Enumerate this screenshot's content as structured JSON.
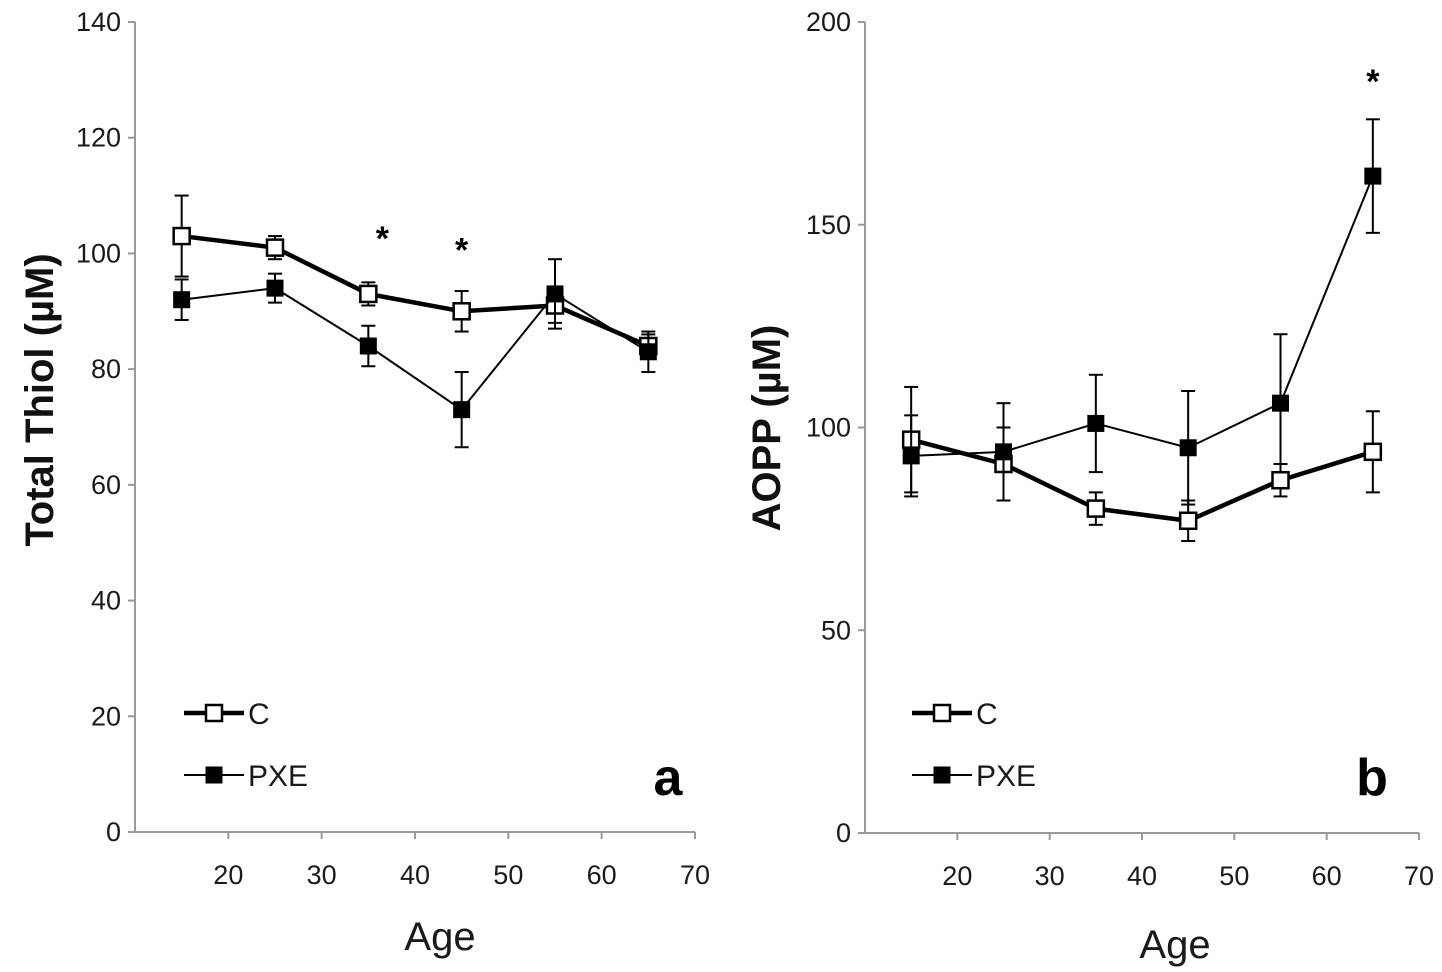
{
  "chart_data": [
    {
      "type": "line",
      "panel_label": "a",
      "title": "",
      "xlabel": "Age",
      "ylabel": "Total Thiol (µM)",
      "xlim": [
        10,
        70
      ],
      "ylim": [
        0,
        140
      ],
      "xticks": [
        20,
        30,
        40,
        50,
        60,
        70
      ],
      "yticks": [
        0,
        20,
        40,
        60,
        80,
        100,
        120,
        140
      ],
      "grid": false,
      "legend_position": "bottom-left",
      "series": [
        {
          "name": "C",
          "marker": "open-square",
          "line_weight": "thick",
          "color": "#000000",
          "points": [
            {
              "x": 15,
              "y": 103,
              "err": 7
            },
            {
              "x": 25,
              "y": 101,
              "err": 2
            },
            {
              "x": 35,
              "y": 93,
              "err": 2
            },
            {
              "x": 45,
              "y": 90,
              "err": 3.5
            },
            {
              "x": 55,
              "y": 91,
              "err": 3
            },
            {
              "x": 65,
              "y": 84,
              "err": 2
            }
          ]
        },
        {
          "name": "PXE",
          "marker": "filled-square",
          "line_weight": "thin",
          "color": "#000000",
          "points": [
            {
              "x": 15,
              "y": 92,
              "err": 3.5
            },
            {
              "x": 25,
              "y": 94,
              "err": 2.5
            },
            {
              "x": 35,
              "y": 84,
              "err": 3.5
            },
            {
              "x": 45,
              "y": 73,
              "err": 6.5
            },
            {
              "x": 55,
              "y": 93,
              "err": 6
            },
            {
              "x": 65,
              "y": 83,
              "err": 3.5
            }
          ]
        }
      ],
      "annotations": [
        {
          "text": "*",
          "x": 36.5,
          "y": 103
        },
        {
          "text": "*",
          "x": 45,
          "y": 101
        }
      ]
    },
    {
      "type": "line",
      "panel_label": "b",
      "title": "",
      "xlabel": "Age",
      "ylabel": "AOPP (µM)",
      "xlim": [
        10,
        70
      ],
      "ylim": [
        0,
        200
      ],
      "xticks": [
        20,
        30,
        40,
        50,
        60,
        70
      ],
      "yticks": [
        0,
        50,
        100,
        150,
        200
      ],
      "grid": false,
      "legend_position": "bottom-left",
      "series": [
        {
          "name": "C",
          "marker": "open-square",
          "line_weight": "thick",
          "color": "#000000",
          "points": [
            {
              "x": 15,
              "y": 97,
              "err": 13
            },
            {
              "x": 25,
              "y": 91,
              "err": 9
            },
            {
              "x": 35,
              "y": 80,
              "err": 4
            },
            {
              "x": 45,
              "y": 77,
              "err": 5
            },
            {
              "x": 55,
              "y": 87,
              "err": 4
            },
            {
              "x": 65,
              "y": 94,
              "err": 10
            }
          ]
        },
        {
          "name": "PXE",
          "marker": "filled-square",
          "line_weight": "thin",
          "color": "#000000",
          "points": [
            {
              "x": 15,
              "y": 93,
              "err": 10
            },
            {
              "x": 25,
              "y": 94,
              "err": 12
            },
            {
              "x": 35,
              "y": 101,
              "err": 12
            },
            {
              "x": 45,
              "y": 95,
              "err": 14
            },
            {
              "x": 55,
              "y": 106,
              "err": 17
            },
            {
              "x": 65,
              "y": 162,
              "err": 14
            }
          ]
        }
      ],
      "annotations": [
        {
          "text": "*",
          "x": 65,
          "y": 186
        }
      ]
    }
  ]
}
